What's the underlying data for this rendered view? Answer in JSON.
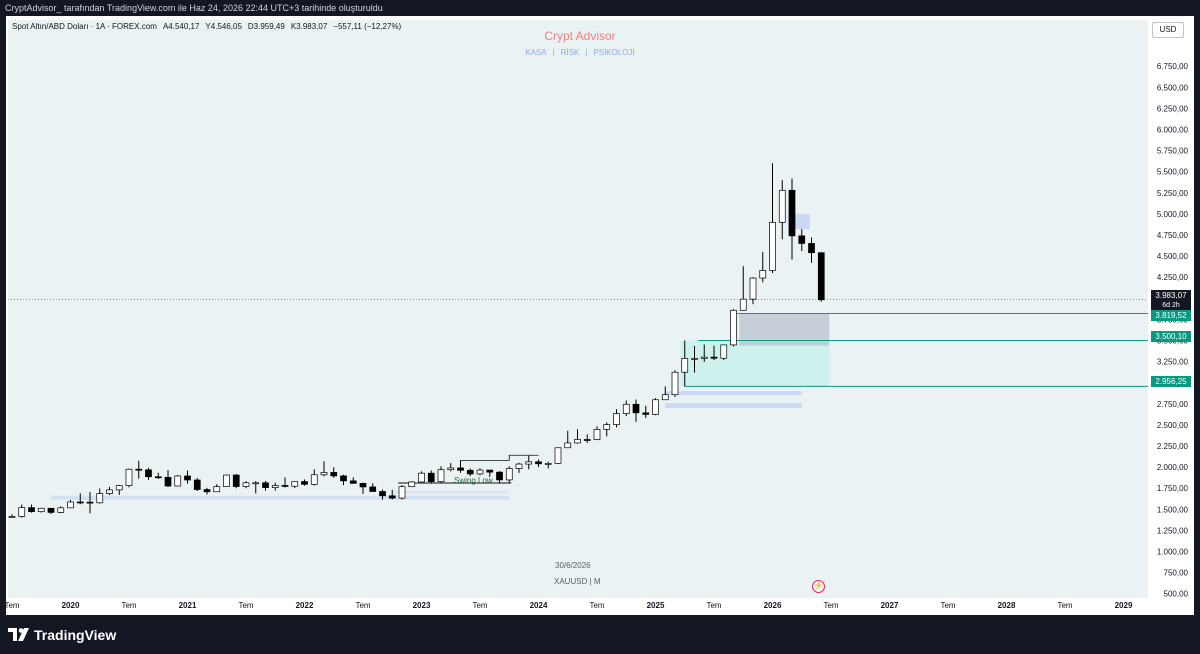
{
  "header": {
    "caption": "CryptAdvisor_ tarafından TradingView.com ile Haz 24, 2026 22:44 UTC+3 tarihinde oluşturuldu"
  },
  "legend": {
    "symbol": "Spot Altın/ABD Doları · 1A · FOREX.com",
    "open": "A4.540,17",
    "high": "Y4.546,05",
    "low": "D3.959,49",
    "close": "K3.983,07",
    "change": "−557,11 (−12,27%)"
  },
  "watermark": {
    "title": "Crypt Advisor",
    "link1": "KASA",
    "link2": "RİSK",
    "link3": "PSİKOLOJİ",
    "date": "30/6/2026",
    "symbol": "XAUUSD | M"
  },
  "currency": "USD",
  "price_tags": {
    "current": "3.983,07",
    "countdown": "6d 2h",
    "level1": "3.819,52",
    "level2": "3.500,10",
    "level3": "2.956,25"
  },
  "annotation": {
    "swing_low": "Swing Low"
  },
  "logo": "TradingView",
  "colors": {
    "plot_bg": "#eaf2f4",
    "bull_fill": "#ffffff",
    "bear_fill": "#000000",
    "zone_teal": "#c8f2ec",
    "zone_gray": "#b9c3cf",
    "level_line": "#089981",
    "tag_green": "#089981"
  },
  "chart_data": {
    "type": "candlestick",
    "interval": "1 month",
    "ylim": [
      500,
      6800
    ],
    "yticks": [
      "6.750,00",
      "6.500,00",
      "6.250,00",
      "6.000,00",
      "5.750,00",
      "5.500,00",
      "5.250,00",
      "5.000,00",
      "4.750,00",
      "4.500,00",
      "4.250,00",
      "4.000,00",
      "3.750,00",
      "3.500,00",
      "3.250,00",
      "3.000,00",
      "2.750,00",
      "2.500,00",
      "2.250,00",
      "2.000,00",
      "1.750,00",
      "1.500,00",
      "1.250,00",
      "1.000,00",
      "750,00",
      "500,00"
    ],
    "ytick_values": [
      6750,
      6500,
      6250,
      6000,
      5750,
      5500,
      5250,
      5000,
      4750,
      4500,
      4250,
      4000,
      3750,
      3500,
      3250,
      3000,
      2750,
      2500,
      2250,
      2000,
      1750,
      1500,
      1250,
      1000,
      750,
      500
    ],
    "xticks": [
      {
        "label": "Tem",
        "year": false,
        "date": "2019-07"
      },
      {
        "label": "2020",
        "year": true,
        "date": "2020-01"
      },
      {
        "label": "Tem",
        "year": false,
        "date": "2020-07"
      },
      {
        "label": "2021",
        "year": true,
        "date": "2021-01"
      },
      {
        "label": "Tem",
        "year": false,
        "date": "2021-07"
      },
      {
        "label": "2022",
        "year": true,
        "date": "2022-01"
      },
      {
        "label": "Tem",
        "year": false,
        "date": "2022-07"
      },
      {
        "label": "2023",
        "year": true,
        "date": "2023-01"
      },
      {
        "label": "Tem",
        "year": false,
        "date": "2023-07"
      },
      {
        "label": "2024",
        "year": true,
        "date": "2024-01"
      },
      {
        "label": "Tem",
        "year": false,
        "date": "2024-07"
      },
      {
        "label": "2025",
        "year": true,
        "date": "2025-01"
      },
      {
        "label": "Tem",
        "year": false,
        "date": "2025-07"
      },
      {
        "label": "2026",
        "year": true,
        "date": "2026-01"
      },
      {
        "label": "Tem",
        "year": false,
        "date": "2026-07"
      },
      {
        "label": "2027",
        "year": true,
        "date": "2027-01"
      },
      {
        "label": "Tem",
        "year": false,
        "date": "2027-07"
      },
      {
        "label": "2028",
        "year": true,
        "date": "2028-01"
      },
      {
        "label": "Tem",
        "year": false,
        "date": "2028-07"
      },
      {
        "label": "2029",
        "year": true,
        "date": "2029-01"
      }
    ],
    "candles": [
      [
        "2019-07",
        1410,
        1440,
        1400,
        1415
      ],
      [
        "2019-08",
        1415,
        1555,
        1400,
        1520
      ],
      [
        "2019-09",
        1520,
        1557,
        1460,
        1472
      ],
      [
        "2019-10",
        1472,
        1518,
        1460,
        1512
      ],
      [
        "2019-11",
        1512,
        1516,
        1445,
        1463
      ],
      [
        "2019-12",
        1463,
        1535,
        1455,
        1517
      ],
      [
        "2020-01",
        1517,
        1611,
        1517,
        1587
      ],
      [
        "2020-02",
        1587,
        1689,
        1560,
        1585
      ],
      [
        "2020-03",
        1585,
        1704,
        1451,
        1577
      ],
      [
        "2020-04",
        1577,
        1747,
        1567,
        1686
      ],
      [
        "2020-05",
        1686,
        1765,
        1670,
        1730
      ],
      [
        "2020-06",
        1730,
        1789,
        1670,
        1781
      ],
      [
        "2020-07",
        1781,
        1984,
        1760,
        1975
      ],
      [
        "2020-08",
        1975,
        2075,
        1863,
        1968
      ],
      [
        "2020-09",
        1968,
        1992,
        1848,
        1886
      ],
      [
        "2020-10",
        1886,
        1933,
        1860,
        1879
      ],
      [
        "2020-11",
        1879,
        1965,
        1764,
        1776
      ],
      [
        "2020-12",
        1776,
        1906,
        1775,
        1895
      ],
      [
        "2021-01",
        1895,
        1959,
        1802,
        1847
      ],
      [
        "2021-02",
        1847,
        1871,
        1717,
        1734
      ],
      [
        "2021-03",
        1734,
        1755,
        1677,
        1708
      ],
      [
        "2021-04",
        1708,
        1798,
        1707,
        1769
      ],
      [
        "2021-05",
        1769,
        1913,
        1765,
        1906
      ],
      [
        "2021-06",
        1906,
        1917,
        1750,
        1770
      ],
      [
        "2021-07",
        1770,
        1834,
        1750,
        1814
      ],
      [
        "2021-08",
        1814,
        1833,
        1687,
        1814
      ],
      [
        "2021-09",
        1814,
        1835,
        1722,
        1757
      ],
      [
        "2021-10",
        1757,
        1814,
        1721,
        1783
      ],
      [
        "2021-11",
        1783,
        1877,
        1758,
        1774
      ],
      [
        "2021-12",
        1774,
        1831,
        1753,
        1829
      ],
      [
        "2022-01",
        1829,
        1853,
        1780,
        1796
      ],
      [
        "2022-02",
        1796,
        1974,
        1782,
        1909
      ],
      [
        "2022-03",
        1909,
        2070,
        1890,
        1937
      ],
      [
        "2022-04",
        1937,
        1998,
        1872,
        1896
      ],
      [
        "2022-05",
        1896,
        1909,
        1787,
        1837
      ],
      [
        "2022-06",
        1837,
        1879,
        1805,
        1807
      ],
      [
        "2022-07",
        1807,
        1814,
        1681,
        1765
      ],
      [
        "2022-08",
        1765,
        1808,
        1710,
        1711
      ],
      [
        "2022-09",
        1711,
        1735,
        1615,
        1660
      ],
      [
        "2022-10",
        1660,
        1730,
        1617,
        1633
      ],
      [
        "2022-11",
        1633,
        1786,
        1616,
        1768
      ],
      [
        "2022-12",
        1768,
        1833,
        1765,
        1824
      ],
      [
        "2023-01",
        1824,
        1949,
        1823,
        1928
      ],
      [
        "2023-02",
        1928,
        1960,
        1804,
        1827
      ],
      [
        "2023-03",
        1827,
        2009,
        1810,
        1969
      ],
      [
        "2023-04",
        1969,
        2048,
        1950,
        1990
      ],
      [
        "2023-05",
        1990,
        2079,
        1932,
        1962
      ],
      [
        "2023-06",
        1962,
        1984,
        1893,
        1919
      ],
      [
        "2023-07",
        1919,
        1987,
        1903,
        1965
      ],
      [
        "2023-08",
        1965,
        1966,
        1884,
        1940
      ],
      [
        "2023-09",
        1940,
        1953,
        1815,
        1848
      ],
      [
        "2023-10",
        1848,
        2009,
        1810,
        1983
      ],
      [
        "2023-11",
        1983,
        2052,
        1931,
        2036
      ],
      [
        "2023-12",
        2036,
        2135,
        1973,
        2063
      ],
      [
        "2024-01",
        2063,
        2088,
        2001,
        2039
      ],
      [
        "2024-02",
        2039,
        2065,
        1984,
        2044
      ],
      [
        "2024-03",
        2044,
        2222,
        2039,
        2229
      ],
      [
        "2024-04",
        2229,
        2431,
        2228,
        2286
      ],
      [
        "2024-05",
        2286,
        2450,
        2277,
        2327
      ],
      [
        "2024-06",
        2327,
        2387,
        2286,
        2326
      ],
      [
        "2024-07",
        2326,
        2483,
        2318,
        2447
      ],
      [
        "2024-08",
        2447,
        2531,
        2364,
        2503
      ],
      [
        "2024-09",
        2503,
        2685,
        2471,
        2634
      ],
      [
        "2024-10",
        2634,
        2790,
        2603,
        2744
      ],
      [
        "2024-11",
        2744,
        2801,
        2536,
        2643
      ],
      [
        "2024-12",
        2643,
        2726,
        2583,
        2624
      ],
      [
        "2025-01",
        2624,
        2817,
        2614,
        2798
      ],
      [
        "2025-02",
        2798,
        2956,
        2832,
        2858
      ],
      [
        "2025-03",
        2858,
        3148,
        2832,
        3124
      ],
      [
        "2025-04",
        3124,
        3500,
        2957,
        3288
      ],
      [
        "2025-05",
        3288,
        3435,
        3120,
        3289
      ],
      [
        "2025-06",
        3289,
        3452,
        3247,
        3303
      ],
      [
        "2025-07",
        3303,
        3439,
        3268,
        3290
      ],
      [
        "2025-08",
        3290,
        3453,
        3268,
        3448
      ],
      [
        "2025-09",
        3448,
        3870,
        3430,
        3858
      ],
      [
        "2025-10",
        3858,
        4380,
        3890,
        3990
      ],
      [
        "2025-11",
        3990,
        4250,
        3930,
        4240
      ],
      [
        "2025-12",
        4240,
        4550,
        4190,
        4330
      ],
      [
        "2026-01",
        4330,
        5600,
        4300,
        4900
      ],
      [
        "2026-02",
        4900,
        5400,
        4700,
        5280
      ],
      [
        "2026-03",
        5280,
        5420,
        4460,
        4740
      ],
      [
        "2026-04",
        4740,
        4820,
        4560,
        4650
      ],
      [
        "2026-05",
        4650,
        4720,
        4420,
        4540
      ],
      [
        "2026-06",
        4540,
        4546,
        3959,
        3983
      ]
    ],
    "levels": [
      3819.52,
      3500.1,
      2956.25
    ],
    "zones": [
      {
        "kind": "teal",
        "from": "2025-04",
        "to": "2026-06",
        "low": 2956,
        "high": 3500
      },
      {
        "kind": "gray",
        "from": "2025-10",
        "to": "2026-06",
        "low": 3440,
        "high": 3819
      }
    ]
  }
}
